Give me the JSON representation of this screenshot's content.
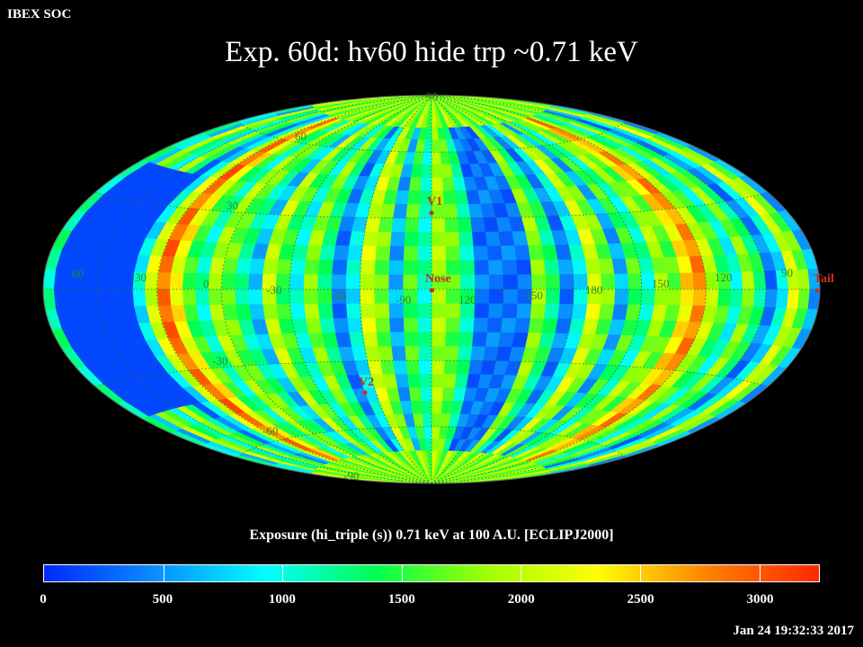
{
  "header": {
    "corner_label": "IBEX SOC",
    "title": "Exp.   60d: hv60 hide trp ~0.71 keV"
  },
  "map": {
    "projection": "Hammer-Aitoff (ecliptic)",
    "longitude_labels": [
      "60",
      "30",
      "0",
      "-30",
      "-60",
      "-90",
      "120",
      "-150",
      "180",
      "150",
      "120",
      "90"
    ],
    "latitude_labels": [
      "90",
      "60",
      "30",
      "-30",
      "-60",
      "-90"
    ],
    "markers": [
      {
        "label": "V1",
        "color": "#c83018"
      },
      {
        "label": "Nose",
        "color": "#c83018"
      },
      {
        "label": "V2",
        "color": "#c83018"
      },
      {
        "label": "Tail",
        "color": "#c83018"
      }
    ]
  },
  "colorbar": {
    "title": "Exposure (hi_triple (s))  0.71 keV at 100 A.U. [ECLIPJ2000]",
    "tick_labels": [
      "0",
      "500",
      "1000",
      "1500",
      "2000",
      "2500",
      "3000"
    ],
    "tick_values": [
      0,
      500,
      1000,
      1500,
      2000,
      2500,
      3000
    ],
    "range": [
      0,
      3250
    ],
    "colors": [
      "#0028ff",
      "#0a8cff",
      "#00ffff",
      "#00ff50",
      "#a0ff00",
      "#ffff00",
      "#ff8000",
      "#ff2800"
    ]
  },
  "footer": {
    "timestamp": "Jan 24 19:32:33 2017"
  }
}
